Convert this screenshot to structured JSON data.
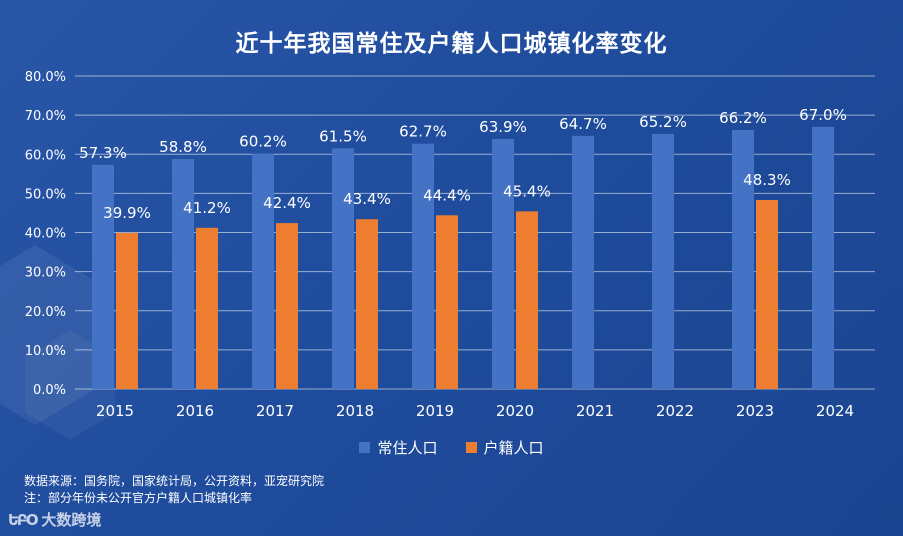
{
  "chart_data": {
    "type": "bar",
    "title": "近十年我国常住及户籍人口城镇化率变化",
    "categories": [
      "2015",
      "2016",
      "2017",
      "2018",
      "2019",
      "2020",
      "2021",
      "2022",
      "2023",
      "2024"
    ],
    "series": [
      {
        "name": "常住人口",
        "color": "#4472c4",
        "values": [
          57.3,
          58.8,
          60.2,
          61.5,
          62.7,
          63.9,
          64.7,
          65.2,
          66.2,
          67.0
        ],
        "labels": [
          "57.3%",
          "58.8%",
          "60.2%",
          "61.5%",
          "62.7%",
          "63.9%",
          "64.7%",
          "65.2%",
          "66.2%",
          "67.0%"
        ]
      },
      {
        "name": "户籍人口",
        "color": "#ed7d31",
        "values": [
          39.9,
          41.2,
          42.4,
          43.4,
          44.4,
          45.4,
          null,
          null,
          48.3,
          null
        ],
        "labels": [
          "39.9%",
          "41.2%",
          "42.4%",
          "43.4%",
          "44.4%",
          "45.4%",
          null,
          null,
          "48.3%",
          null
        ]
      }
    ],
    "ylim": [
      0,
      80
    ],
    "yticks": [
      0,
      10,
      20,
      30,
      40,
      50,
      60,
      70,
      80
    ],
    "ytick_labels": [
      "0.0%",
      "10.0%",
      "20.0%",
      "30.0%",
      "40.0%",
      "50.0%",
      "60.0%",
      "70.0%",
      "80.0%"
    ],
    "grid": true,
    "legend_position": "bottom"
  },
  "notes": {
    "source": "数据来源：国务院，国家统计局，公开资料，亚宠研究院",
    "footnote": "注：部分年份未公开官方户籍人口城镇化率"
  },
  "brand": {
    "mark": "ԵԲՕ",
    "name": "大数跨境"
  }
}
